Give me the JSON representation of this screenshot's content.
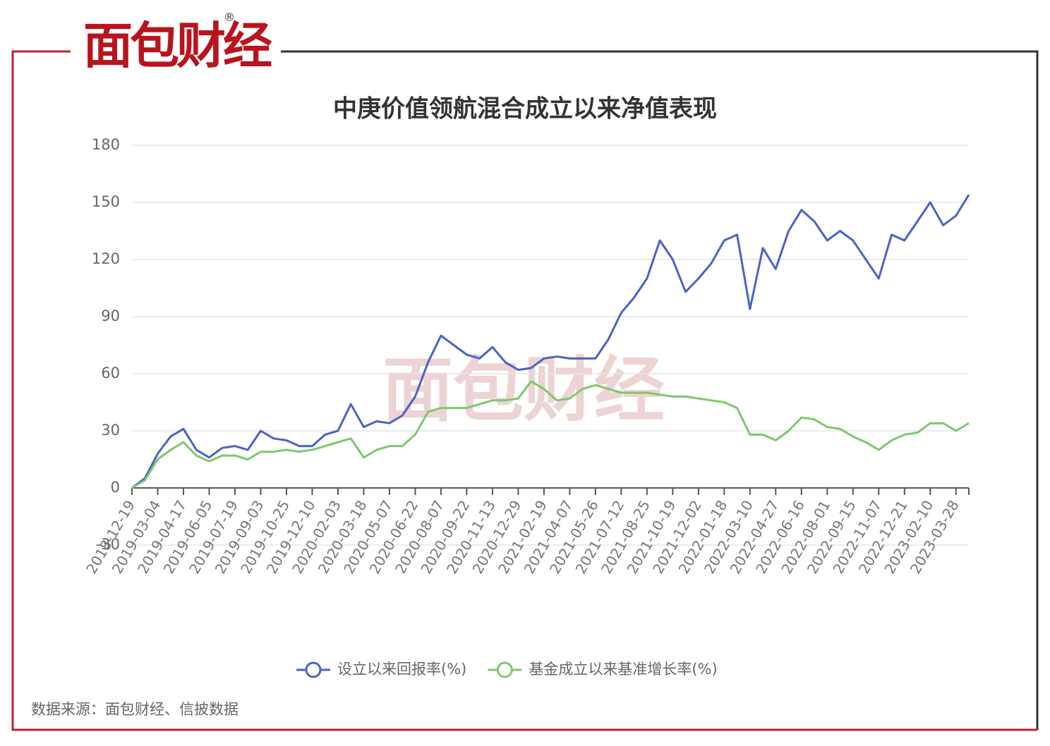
{
  "logo": {
    "text": "面包财经",
    "mark": "®"
  },
  "source": "数据来源：面包财经、信披数据",
  "chart_data": {
    "type": "line",
    "title": "中庚价值领航混合成立以来净值表现",
    "categories": [
      "2018-12-19",
      null,
      "2019-03-04",
      null,
      "2019-04-17",
      null,
      "2019-06-05",
      null,
      "2019-07-19",
      null,
      "2019-09-03",
      null,
      "2019-10-25",
      null,
      "2019-12-10",
      null,
      "2020-02-03",
      null,
      "2020-03-18",
      null,
      "2020-05-07",
      null,
      "2020-06-22",
      null,
      "2020-08-07",
      null,
      "2020-09-22",
      null,
      "2020-11-13",
      null,
      "2020-12-29",
      null,
      "2021-02-19",
      null,
      "2021-04-07",
      null,
      "2021-05-26",
      null,
      "2021-07-12",
      null,
      "2021-08-25",
      null,
      "2021-10-19",
      null,
      "2021-12-02",
      null,
      "2022-01-18",
      null,
      "2022-03-10",
      null,
      "2022-04-27",
      null,
      "2022-06-16",
      null,
      "2022-08-01",
      null,
      "2022-09-15",
      null,
      "2022-11-07",
      null,
      "2022-12-21",
      null,
      "2023-02-10",
      null,
      "2023-03-28",
      null
    ],
    "series": [
      {
        "name": "设立以来回报率(%)",
        "color": "#4a63c4",
        "values": [
          0,
          5,
          18,
          27,
          31,
          20,
          16,
          21,
          22,
          20,
          30,
          26,
          25,
          22,
          22,
          28,
          30,
          44,
          32,
          35,
          34,
          38,
          48,
          66,
          80,
          75,
          70,
          68,
          74,
          66,
          62,
          63,
          68,
          69,
          68,
          68,
          68,
          78,
          92,
          100,
          110,
          130,
          120,
          103,
          110,
          118,
          130,
          133,
          94,
          126,
          115,
          135,
          146,
          140,
          130,
          135,
          130,
          120,
          110,
          133,
          130,
          140,
          150,
          138,
          143,
          154
        ]
      },
      {
        "name": "基金成立以来基准增长率(%)",
        "color": "#7cc96a",
        "values": [
          0,
          4,
          15,
          20,
          24,
          17,
          14,
          17,
          17,
          15,
          19,
          19,
          20,
          19,
          20,
          22,
          24,
          26,
          16,
          20,
          22,
          22,
          28,
          40,
          42,
          42,
          42,
          44,
          46,
          46,
          47,
          56,
          52,
          46,
          47,
          52,
          54,
          52,
          50,
          50,
          50,
          49,
          48,
          48,
          47,
          46,
          45,
          42,
          28,
          28,
          25,
          30,
          37,
          36,
          32,
          31,
          27,
          24,
          20,
          25,
          28,
          29,
          34,
          34,
          30,
          34
        ]
      }
    ],
    "ylim": [
      -30,
      180
    ],
    "yticks": [
      -30,
      0,
      30,
      60,
      90,
      120,
      150,
      180
    ],
    "grid": true
  }
}
